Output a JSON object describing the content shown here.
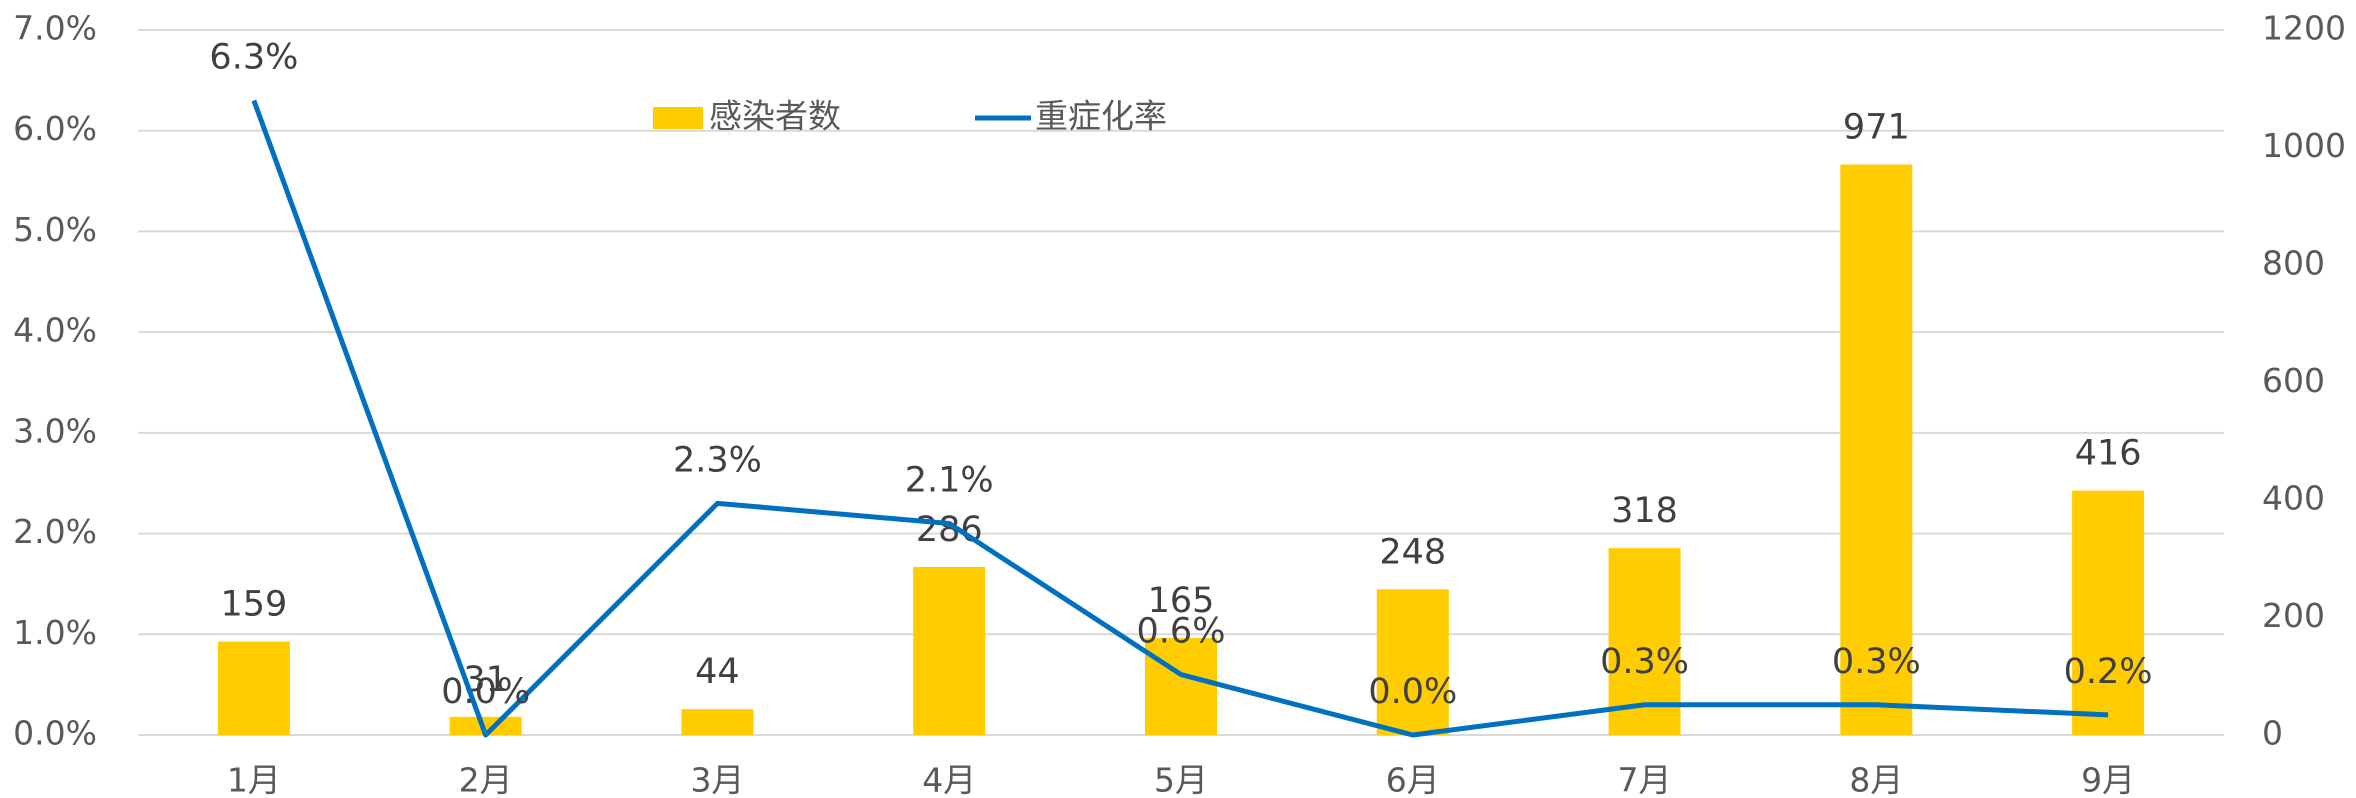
{
  "chart_data": {
    "type": "bar_line",
    "categories": [
      "1月",
      "2月",
      "3月",
      "4月",
      "5月",
      "6月",
      "7月",
      "8月",
      "9月"
    ],
    "series": [
      {
        "name": "感染者数",
        "type": "bar",
        "axis": "y2",
        "color": "#FFCC00",
        "values": [
          159,
          31,
          44,
          286,
          165,
          248,
          318,
          971,
          416
        ]
      },
      {
        "name": "重症化率",
        "type": "line",
        "axis": "y",
        "color": "#0070C0",
        "values": [
          6.3,
          0.0,
          2.3,
          2.1,
          0.6,
          0.0,
          0.3,
          0.3,
          0.2
        ],
        "value_labels": [
          "6.3%",
          "0.0%",
          "2.3%",
          "2.1%",
          "0.6%",
          "0.0%",
          "0.3%",
          "0.3%",
          "0.2%"
        ]
      }
    ],
    "ylim": [
      0,
      7
    ],
    "yticks": [
      {
        "value": 0,
        "label": "0.0%"
      },
      {
        "value": 1,
        "label": "1.0%"
      },
      {
        "value": 2,
        "label": "2.0%"
      },
      {
        "value": 3,
        "label": "3.0%"
      },
      {
        "value": 4,
        "label": "4.0%"
      },
      {
        "value": 5,
        "label": "5.0%"
      },
      {
        "value": 6,
        "label": "6.0%"
      },
      {
        "value": 7,
        "label": "7.0%"
      }
    ],
    "y2lim": [
      0,
      1200
    ],
    "y2ticks": [
      0,
      200,
      400,
      600,
      800,
      1000,
      1200
    ],
    "grid": true,
    "legend": "top"
  }
}
